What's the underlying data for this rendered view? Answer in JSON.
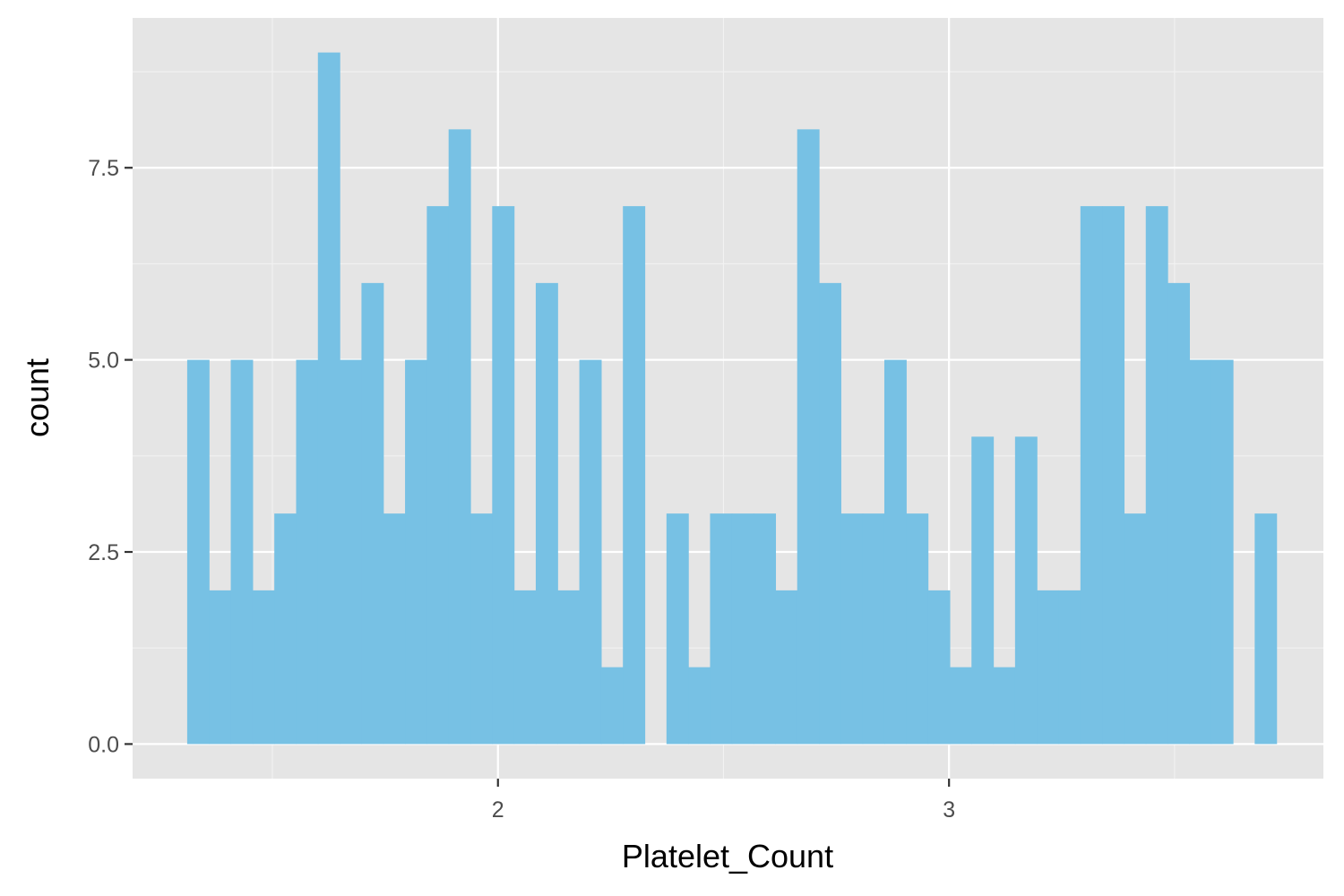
{
  "chart_data": {
    "type": "bar",
    "subtype": "histogram",
    "title": "",
    "xlabel": "Platelet_Count",
    "ylabel": "count",
    "bin_width": 0.0483,
    "first_bin_start": 1.311,
    "counts": [
      5,
      2,
      5,
      2,
      3,
      5,
      9,
      5,
      6,
      3,
      5,
      7,
      8,
      3,
      7,
      2,
      6,
      2,
      5,
      1,
      7,
      0,
      3,
      1,
      3,
      3,
      3,
      2,
      8,
      6,
      3,
      3,
      5,
      3,
      2,
      1,
      4,
      1,
      4,
      2,
      2,
      7,
      7,
      3,
      7,
      6,
      5,
      5,
      0,
      3
    ],
    "xlim": [
      1.19,
      3.83
    ],
    "ylim": [
      -0.45,
      9.45
    ],
    "x_ticks": [
      2,
      3
    ],
    "x_tick_labels": [
      "2",
      "3"
    ],
    "y_ticks": [
      0,
      2.5,
      5,
      7.5
    ],
    "y_tick_labels": [
      "0.0",
      "2.5",
      "5.0",
      "7.5"
    ],
    "grid": true,
    "legend": "none",
    "colors": {
      "bar_fill": "#77C1E4",
      "panel_bg": "#E5E5E5",
      "grid_major": "#FFFFFF",
      "grid_minor": "#F2F2F2",
      "tick_mark": "#333333"
    }
  }
}
